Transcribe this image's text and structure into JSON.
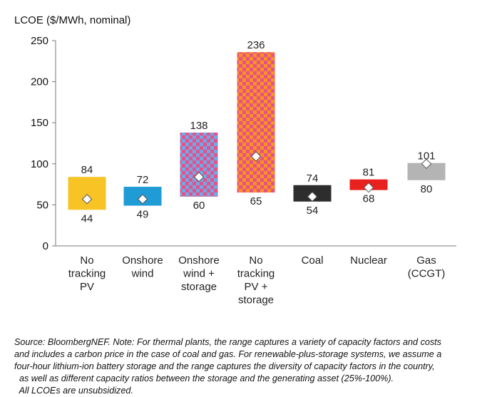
{
  "chart_data": {
    "type": "bar",
    "subtype": "floating-range",
    "title": "",
    "ylabel": "LCOE ($/MWh, nominal)",
    "xlabel": "",
    "ylim": [
      0,
      250
    ],
    "yticks": [
      0,
      50,
      100,
      150,
      200,
      250
    ],
    "categories": [
      [
        "No",
        "tracking",
        "PV"
      ],
      [
        "Onshore",
        "wind"
      ],
      [
        "Onshore",
        "wind +",
        "storage"
      ],
      [
        "No",
        "tracking",
        "PV +",
        "storage"
      ],
      [
        "Coal"
      ],
      [
        "Nuclear"
      ],
      [
        "Gas",
        "(CCGT)"
      ]
    ],
    "series": [
      {
        "name": "low",
        "values": [
          44,
          49,
          60,
          65,
          54,
          68,
          80
        ]
      },
      {
        "name": "high",
        "values": [
          84,
          72,
          138,
          236,
          74,
          81,
          101
        ]
      },
      {
        "name": "central",
        "values": [
          57,
          57,
          84,
          109,
          60,
          71,
          100
        ]
      }
    ],
    "colors": [
      "#f7c325",
      "#1f9bd6",
      "pattern-pink-blue",
      "pattern-pink-orange",
      "#2d2d2d",
      "#e8211f",
      "#b4b4b4"
    ],
    "pattern_colors": {
      "pink": "#e8508a",
      "blue": "#6fa9e6",
      "orange": "#f7941d"
    },
    "marker": "white-diamond",
    "grid": false
  },
  "source_note": {
    "lines": [
      "Source: BloombergNEF. Note: For thermal plants, the range captures a variety of capacity factors and costs",
      "and includes a carbon price in the case of coal and gas. For renewable-plus-storage systems, we assume a",
      "four-hour lithium-ion battery storage and the range captures the diversity of capacity factors in the country,",
      "  as well as different capacity ratios between the storage and the generating asset (25%-100%).",
      "  All LCOEs are unsubsidized."
    ]
  }
}
